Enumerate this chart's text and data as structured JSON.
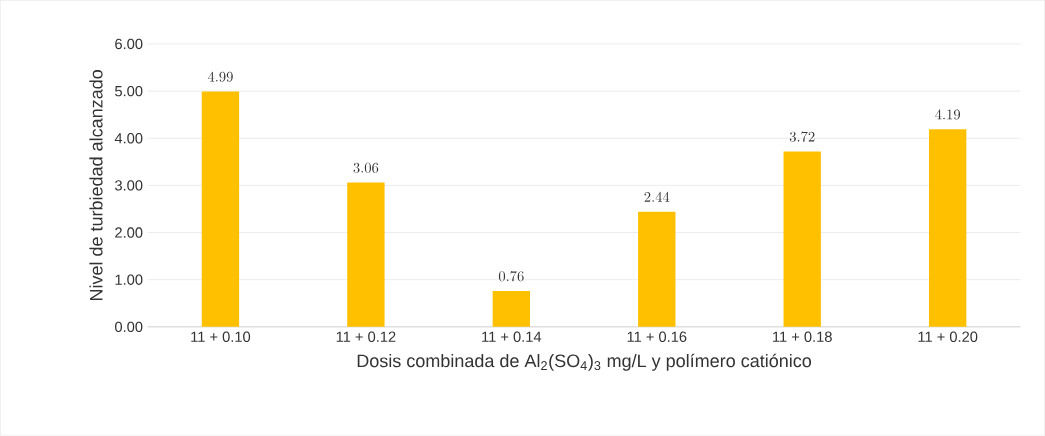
{
  "chart_data": {
    "type": "bar",
    "xlabel": "Dosis combinada de Al$_{2}$(SO$_{4}$)$_{3}$ mg/L y polímero catiónico",
    "ylabel": "Nivel de turbiedad alcanzado",
    "categories": [
      "11 + 0.10",
      "11 + 0.12",
      "11 + 0.14",
      "11 + 0.16",
      "11 + 0.18",
      "11 + 0.20"
    ],
    "values": [
      4.99,
      3.06,
      0.76,
      2.44,
      3.72,
      4.19
    ],
    "color": "#ffc000",
    "ylim": [
      0,
      6
    ],
    "yticks": [
      {
        "value": 0,
        "label": "0.00"
      },
      {
        "value": 1,
        "label": "1.00"
      },
      {
        "value": 2,
        "label": "2.00"
      },
      {
        "value": 3,
        "label": "3.00"
      },
      {
        "value": 4,
        "label": "4.00"
      },
      {
        "value": 5,
        "label": "5.00"
      },
      {
        "value": 6,
        "label": "6.00"
      }
    ],
    "grid": "y",
    "data_labels": true
  }
}
